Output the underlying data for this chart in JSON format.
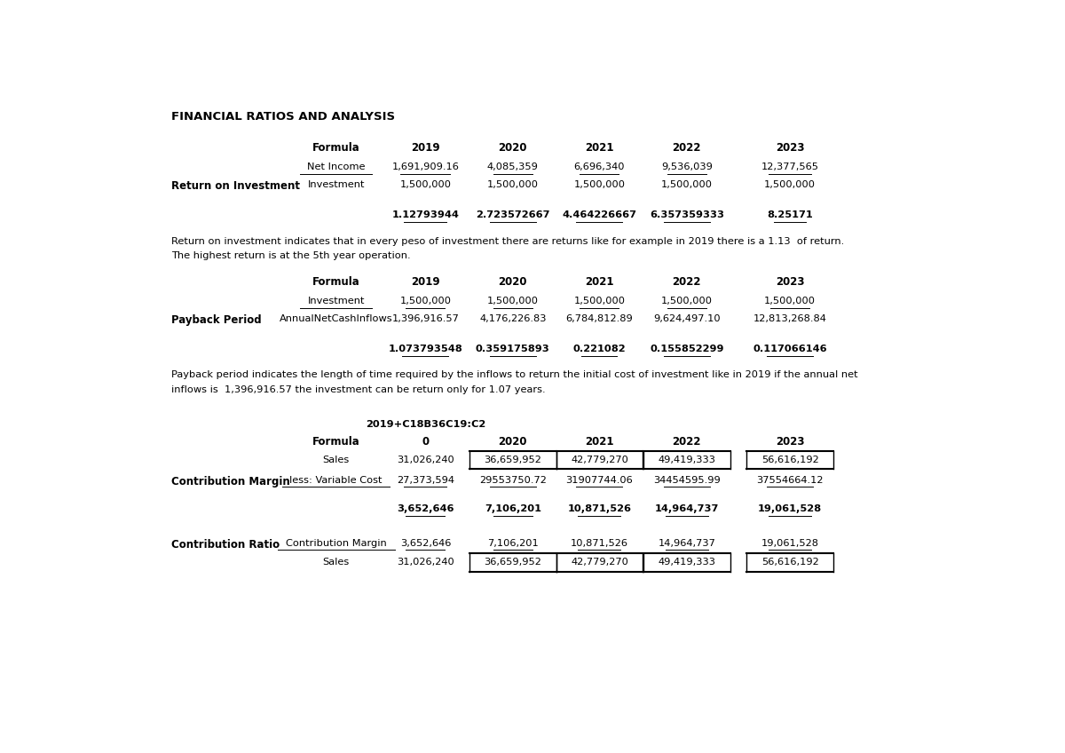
{
  "title": "FINANCIAL RATIOS AND ANALYSIS",
  "background_color": "#ffffff",
  "text_color": "#000000",
  "roi_section": {
    "label": "Return on Investment",
    "years": [
      "2019",
      "2020",
      "2021",
      "2022",
      "2023"
    ],
    "row1_label": "Net Income",
    "row1_values": [
      "1,691,909.16",
      "4,085,359",
      "6,696,340",
      "9,536,039",
      "12,377,565"
    ],
    "row2_label": "Investment",
    "row2_values": [
      "1,500,000",
      "1,500,000",
      "1,500,000",
      "1,500,000",
      "1,500,000"
    ],
    "result_values": [
      "1.12793944",
      "2.723572667",
      "4.464226667",
      "6.357359333",
      "8.25171"
    ],
    "description_line1": "Return on investment indicates that in every peso of investment there are returns like for example in 2019 there is a 1.13  of return.",
    "description_line2": "The highest return is at the 5th year operation."
  },
  "payback_section": {
    "label": "Payback Period",
    "years": [
      "2019",
      "2020",
      "2021",
      "2022",
      "2023"
    ],
    "row1_label": "Investment",
    "row1_values": [
      "1,500,000",
      "1,500,000",
      "1,500,000",
      "1,500,000",
      "1,500,000"
    ],
    "row2_label": "AnnualNetCashInflows",
    "row2_values": [
      "1,396,916.57",
      "4,176,226.83",
      "6,784,812.89",
      "9,624,497.10",
      "12,813,268.84"
    ],
    "result_values": [
      "1.073793548",
      "0.359175893",
      "0.221082",
      "0.155852299",
      "0.117066146"
    ],
    "description_line1": "Payback period indicates the length of time required by the inflows to return the initial cost of investment like in 2019 if the annual net",
    "description_line2": "inflows is  1,396,916.57 the investment can be return only for 1.07 years."
  },
  "contribution_margin_section": {
    "label": "Contribution Margin",
    "year_header_extra": "2019+C18B36C19:C2",
    "years": [
      "0",
      "2020",
      "2021",
      "2022",
      "2023"
    ],
    "row1_label": "Sales",
    "row1_values": [
      "31,026,240",
      "36,659,952",
      "42,779,270",
      "49,419,333",
      "56,616,192"
    ],
    "row2_label": "less: Variable Cost",
    "row2_values": [
      "27,373,594",
      "29553750.72",
      "31907744.06",
      "34454595.99",
      "37554664.12"
    ],
    "result_values": [
      "3,652,646",
      "7,106,201",
      "10,871,526",
      "14,964,737",
      "19,061,528"
    ]
  },
  "contribution_ratio_section": {
    "label": "Contribution Ratio",
    "row1_label": "Contribution Margin",
    "row1_values": [
      "3,652,646",
      "7,106,201",
      "10,871,526",
      "14,964,737",
      "19,061,528"
    ],
    "row2_label": "Sales",
    "row2_values": [
      "31,026,240",
      "36,659,952",
      "42,779,270",
      "49,419,333",
      "56,616,192"
    ]
  }
}
